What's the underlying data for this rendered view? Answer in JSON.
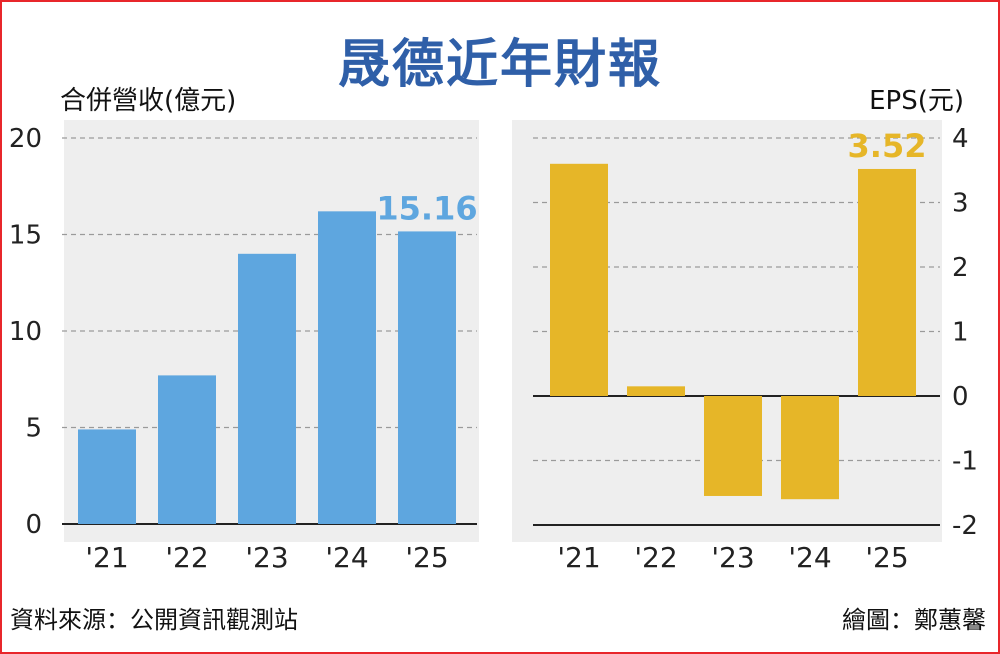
{
  "title": "晟德近年財報",
  "source": "資料來源：公開資訊觀測站",
  "credit": "繪圖：鄭蕙馨",
  "colors": {
    "revenue_bar": "#5ea6df",
    "eps_bar": "#e6b628",
    "title": "#2f5fa8",
    "frame": "#e8262b",
    "panel": "#eeeeee"
  },
  "chart_data": [
    {
      "type": "bar",
      "ylabel": "合併營收(億元)",
      "categories": [
        "'21",
        "'22",
        "'23",
        "'24",
        "'25"
      ],
      "values": [
        4.9,
        7.7,
        14.0,
        16.2,
        15.16
      ],
      "ylim": [
        0,
        20
      ],
      "yticks": [
        "0",
        "5",
        "10",
        "15",
        "20"
      ],
      "ytick_values": [
        0,
        5,
        10,
        15,
        20
      ],
      "annotation": {
        "category_index": 4,
        "text": "15.16"
      },
      "grid": true,
      "yaxis_side": "left"
    },
    {
      "type": "bar",
      "ylabel": "EPS(元)",
      "categories": [
        "'21",
        "'22",
        "'23",
        "'24",
        "'25"
      ],
      "values": [
        3.6,
        0.15,
        -1.55,
        -1.6,
        3.52
      ],
      "ylim": [
        -2,
        4
      ],
      "yticks": [
        "-2",
        "-1",
        "0",
        "1",
        "2",
        "3",
        "4"
      ],
      "ytick_values": [
        -2,
        -1,
        0,
        1,
        2,
        3,
        4
      ],
      "annotation": {
        "category_index": 4,
        "text": "3.52"
      },
      "grid": true,
      "yaxis_side": "right"
    }
  ]
}
